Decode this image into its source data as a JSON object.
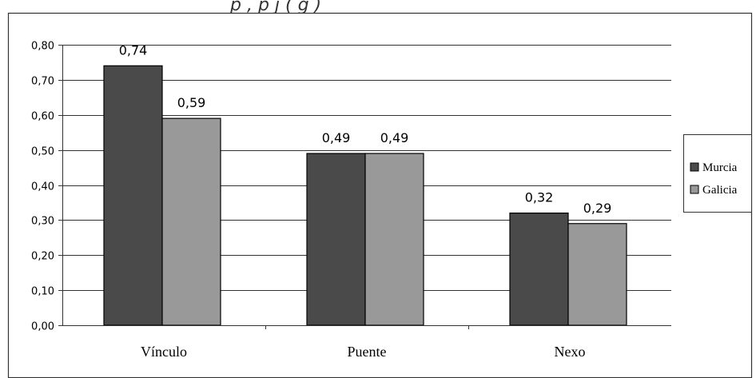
{
  "caption": "p               , p       j        (      g       )",
  "chart_data": {
    "type": "bar",
    "title": "",
    "xlabel": "",
    "ylabel": "",
    "categories": [
      "Vínculo",
      "Puente",
      "Nexo"
    ],
    "series": [
      {
        "name": "Murcia",
        "values": [
          0.74,
          0.49,
          0.32
        ],
        "labels": [
          "0,74",
          "0,49",
          "0,32"
        ],
        "color": "#4a4a4a"
      },
      {
        "name": "Galicia",
        "values": [
          0.59,
          0.49,
          0.29
        ],
        "labels": [
          "0,59",
          "0,49",
          "0,29"
        ],
        "color": "#999999"
      }
    ],
    "ylim": [
      0,
      0.8
    ],
    "yticks": [
      "0,00",
      "0,10",
      "0,20",
      "0,30",
      "0,40",
      "0,50",
      "0,60",
      "0,70",
      "0,80"
    ],
    "grid": true,
    "legend": "right"
  }
}
